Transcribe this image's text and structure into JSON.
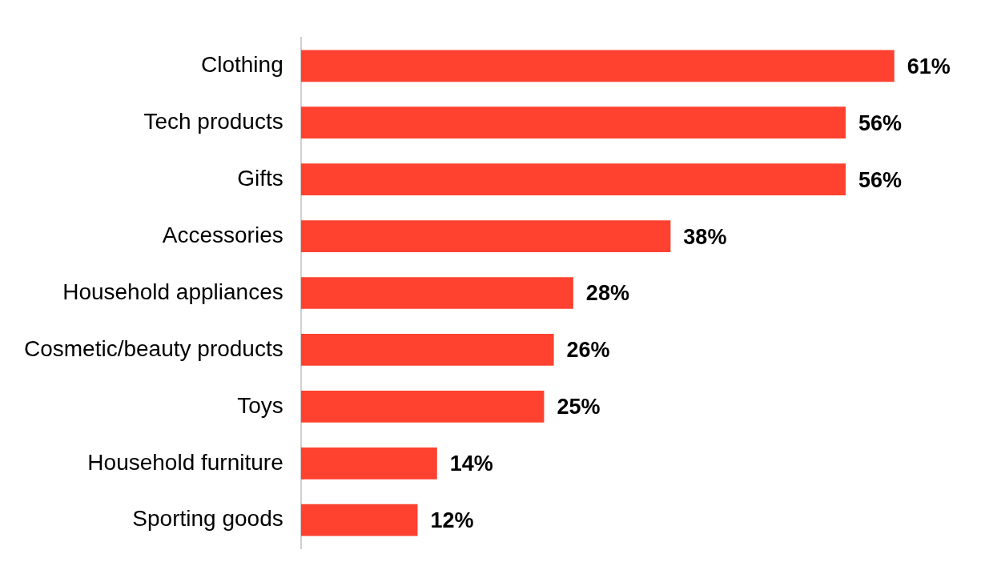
{
  "chart_data": {
    "type": "bar",
    "orientation": "horizontal",
    "categories": [
      "Clothing",
      "Tech products",
      "Gifts",
      "Accessories",
      "Household appliances",
      "Cosmetic/beauty products",
      "Toys",
      "Household furniture",
      "Sporting goods"
    ],
    "values": [
      61,
      56,
      56,
      38,
      28,
      26,
      25,
      14,
      12
    ],
    "value_labels": [
      "61%",
      "56%",
      "56%",
      "38%",
      "28%",
      "26%",
      "25%",
      "14%",
      "12%"
    ],
    "color": "#ff4130",
    "grid": false,
    "legend": false
  }
}
